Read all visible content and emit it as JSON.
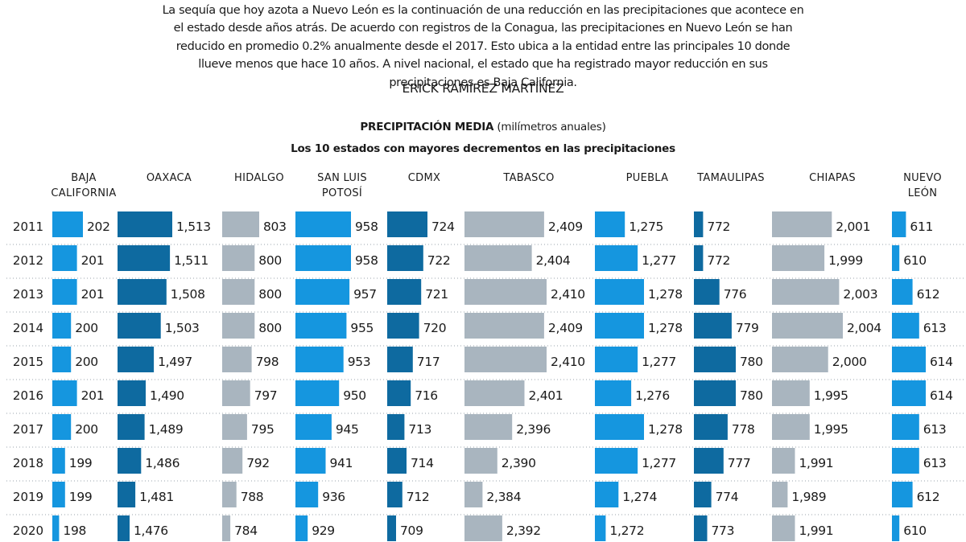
{
  "intro_text": "La sequía que hoy azota a Nuevo León es la continuación de una reducción en las precipitaciones que acontece en el estado desde años atrás. De acuerdo con registros de la Conagua, las precipitaciones en Nuevo León se han reducido en promedio 0.2% anualmente desde el 2017. Esto ubica a la entidad entre las principales 10 donde llueve menos que hace 10 años. A nivel nacional, el estado que ha registrado mayor reducción en sus precipitaciones es Baja California.",
  "author": "ERICK RAMÍREZ MARTÍNEZ",
  "chart_data": {
    "type": "bar",
    "title_bold": "PRECIPITACIÓN MEDIA",
    "title_rest": "(milímetros anuales)",
    "subtitle": "Los 10  estados con mayores decrementos en las precipitaciones",
    "xlabel": "",
    "ylabel": "",
    "orientation": "horizontal",
    "categories": [
      "2011",
      "2012",
      "2013",
      "2014",
      "2015",
      "2016",
      "2017",
      "2018",
      "2019",
      "2020"
    ],
    "series": [
      {
        "name": "BAJA CALIFORNIA",
        "color": "#1596df",
        "values": [
          202,
          201,
          201,
          200,
          200,
          201,
          200,
          199,
          199,
          198
        ],
        "labels": [
          "202",
          "201",
          "201",
          "200",
          "200",
          "201",
          "200",
          "199",
          "199",
          "198"
        ]
      },
      {
        "name": "OAXACA",
        "color": "#0e6aa0",
        "values": [
          1513,
          1511,
          1508,
          1503,
          1497,
          1490,
          1489,
          1486,
          1481,
          1476
        ],
        "labels": [
          "1,513",
          "1,511",
          "1,508",
          "1,503",
          "1,497",
          "1,490",
          "1,489",
          "1,486",
          "1,481",
          "1,476"
        ]
      },
      {
        "name": "HIDALGO",
        "color": "#a9b5bf",
        "values": [
          803,
          800,
          800,
          800,
          798,
          797,
          795,
          792,
          788,
          784
        ],
        "labels": [
          "803",
          "800",
          "800",
          "800",
          "798",
          "797",
          "795",
          "792",
          "788",
          "784"
        ]
      },
      {
        "name": "SAN LUIS POTOSÍ",
        "color": "#1596df",
        "values": [
          958,
          958,
          957,
          955,
          953,
          950,
          945,
          941,
          936,
          929
        ],
        "labels": [
          "958",
          "958",
          "957",
          "955",
          "953",
          "950",
          "945",
          "941",
          "936",
          "929"
        ]
      },
      {
        "name": "CDMX",
        "color": "#0e6aa0",
        "values": [
          724,
          722,
          721,
          720,
          717,
          716,
          713,
          714,
          712,
          709
        ],
        "labels": [
          "724",
          "722",
          "721",
          "720",
          "717",
          "716",
          "713",
          "714",
          "712",
          "709"
        ]
      },
      {
        "name": "TABASCO",
        "color": "#a9b5bf",
        "values": [
          2409,
          2404,
          2410,
          2409,
          2410,
          2401,
          2396,
          2390,
          2384,
          2392
        ],
        "labels": [
          "2,409",
          "2,404",
          "2,410",
          "2,409",
          "2,410",
          "2,401",
          "2,396",
          "2,390",
          "2,384",
          "2,392"
        ]
      },
      {
        "name": "PUEBLA",
        "color": "#1596df",
        "values": [
          1275,
          1277,
          1278,
          1278,
          1277,
          1276,
          1278,
          1277,
          1274,
          1272
        ],
        "labels": [
          "1,275",
          "1,277",
          "1,278",
          "1,278",
          "1,277",
          "1,276",
          "1,278",
          "1,277",
          "1,274",
          "1,272"
        ]
      },
      {
        "name": "TAMAULIPAS",
        "color": "#0e6aa0",
        "values": [
          772,
          772,
          776,
          779,
          780,
          780,
          778,
          777,
          774,
          773
        ],
        "labels": [
          "772",
          "772",
          "776",
          "779",
          "780",
          "780",
          "778",
          "777",
          "774",
          "773"
        ]
      },
      {
        "name": "CHIAPAS",
        "color": "#a9b5bf",
        "values": [
          2001,
          1999,
          2003,
          2004,
          2000,
          1995,
          1995,
          1991,
          1989,
          1991
        ],
        "labels": [
          "2,001",
          "1,999",
          "2,003",
          "2,004",
          "2,000",
          "1,995",
          "1,995",
          "1,991",
          "1,989",
          "1,991"
        ]
      },
      {
        "name": "NUEVO LEÓN",
        "color": "#1596df",
        "values": [
          611,
          610,
          612,
          613,
          614,
          614,
          613,
          613,
          612,
          610
        ],
        "labels": [
          "611",
          "610",
          "612",
          "613",
          "614",
          "614",
          "613",
          "613",
          "612",
          "610"
        ]
      }
    ],
    "header_lines": [
      [
        "BAJA",
        "CALIFORNIA"
      ],
      [
        "OAXACA"
      ],
      [
        "HIDALGO"
      ],
      [
        "SAN LUIS",
        "POTOSÍ"
      ],
      [
        "CDMX"
      ],
      [
        "TABASCO"
      ],
      [
        "PUEBLA"
      ],
      [
        "TAMAULIPAS"
      ],
      [
        "CHIAPAS"
      ],
      [
        "NUEVO",
        "LEÓN"
      ]
    ]
  }
}
